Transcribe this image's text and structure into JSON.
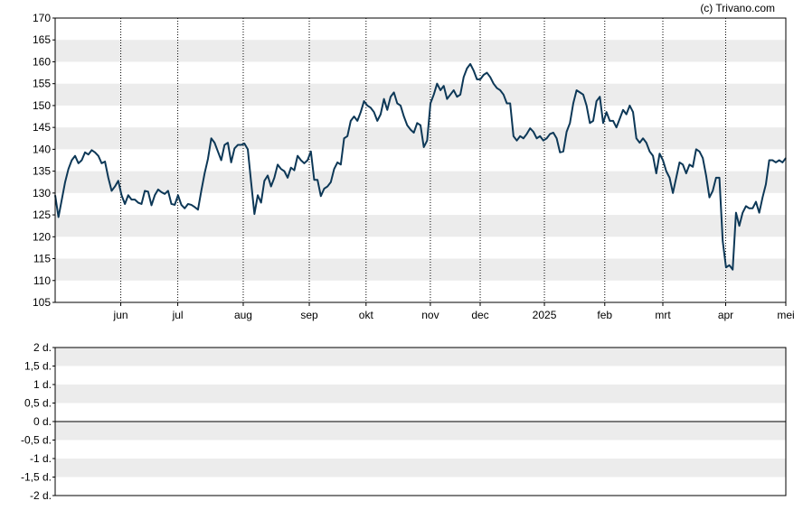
{
  "credit": "(c) Trivano.com",
  "chart_data": [
    {
      "type": "line",
      "x_ticks": [
        "jun",
        "jul",
        "aug",
        "sep",
        "okt",
        "nov",
        "dec",
        "2025",
        "feb",
        "mrt",
        "apr",
        "mei"
      ],
      "y_ticks": [
        "105",
        "110",
        "115",
        "120",
        "125",
        "130",
        "135",
        "140",
        "145",
        "150",
        "155",
        "160",
        "165",
        "170"
      ],
      "ylim": [
        105,
        170
      ],
      "grid": "horizontal bands, dotted vertical month lines",
      "colors": {
        "line": "#0d3857",
        "band": "#ececec",
        "frame": "#000000"
      },
      "series": [
        {
          "values": [
            129.5,
            124.5,
            128.5,
            132.5,
            135.5,
            137.5,
            138.5,
            136.8,
            137.5,
            139.3,
            138.8,
            139.8,
            139.3,
            138.5,
            136.8,
            137.2,
            133.5,
            130.5,
            131.5,
            132.8,
            129.5,
            127.5,
            129.5,
            128.5,
            128.5,
            127.8,
            127.5,
            130.5,
            130.3,
            127.2,
            129.5,
            130.8,
            130.2,
            129.8,
            130.5,
            127.5,
            127.3,
            129.5,
            127.3,
            126.5,
            127.5,
            127.3,
            126.8,
            126.2,
            130.5,
            134.5,
            137.8,
            142.5,
            141.5,
            139.5,
            137.5,
            141.0,
            141.5,
            137.0,
            140.2,
            141.0,
            141.0,
            141.3,
            140.0,
            132.5,
            125.2,
            129.5,
            127.8,
            132.8,
            134.0,
            131.5,
            133.5,
            136.5,
            135.5,
            135.0,
            133.5,
            135.8,
            135.2,
            138.5,
            137.5,
            136.8,
            137.5,
            139.5,
            133.0,
            133.0,
            129.3,
            131.0,
            131.5,
            132.5,
            135.5,
            137.0,
            136.5,
            142.5,
            143.0,
            146.5,
            147.5,
            146.5,
            148.5,
            151.0,
            150.0,
            149.5,
            148.5,
            146.5,
            148.0,
            151.5,
            149.0,
            152.0,
            153.0,
            150.5,
            150.0,
            147.5,
            145.5,
            144.5,
            143.8,
            146.0,
            145.5,
            140.5,
            142.0,
            150.5,
            152.5,
            155.0,
            153.5,
            154.5,
            151.5,
            152.5,
            153.5,
            152.0,
            152.5,
            156.5,
            158.5,
            159.5,
            158.0,
            156.0,
            156.0,
            157.0,
            157.5,
            156.5,
            155.0,
            154.0,
            153.5,
            152.5,
            150.5,
            150.5,
            143.0,
            142.0,
            143.0,
            142.5,
            143.5,
            144.8,
            144.0,
            142.5,
            143.0,
            142.0,
            142.5,
            143.5,
            143.8,
            142.5,
            139.3,
            139.5,
            144.0,
            146.0,
            150.5,
            153.5,
            153.0,
            152.5,
            150.0,
            146.0,
            146.5,
            151.0,
            152.0,
            146.0,
            148.5,
            146.5,
            146.5,
            145.0,
            147.0,
            149.0,
            148.0,
            150.0,
            148.5,
            142.5,
            141.5,
            142.5,
            141.5,
            139.5,
            138.5,
            134.5,
            139.0,
            137.5,
            135.0,
            133.5,
            130.0,
            133.5,
            137.0,
            136.5,
            134.5,
            136.5,
            136.0,
            140.0,
            139.5,
            138.0,
            134.0,
            129.0,
            130.5,
            133.5,
            133.5,
            119.0,
            113.0,
            113.5,
            112.5,
            125.5,
            122.5,
            125.5,
            127.0,
            126.5,
            126.5,
            128.0,
            125.5,
            129.0,
            132.0,
            137.5,
            137.5,
            137.0,
            137.5,
            137.0,
            138.0
          ]
        }
      ]
    },
    {
      "type": "bar",
      "y_ticks": [
        "2 d.",
        "1,5 d.",
        "1 d.",
        "0,5 d.",
        "0 d.",
        "-0,5 d.",
        "-1 d.",
        "-1,5 d.",
        "-2 d."
      ],
      "ylim": [
        -2,
        2
      ],
      "series": []
    }
  ]
}
